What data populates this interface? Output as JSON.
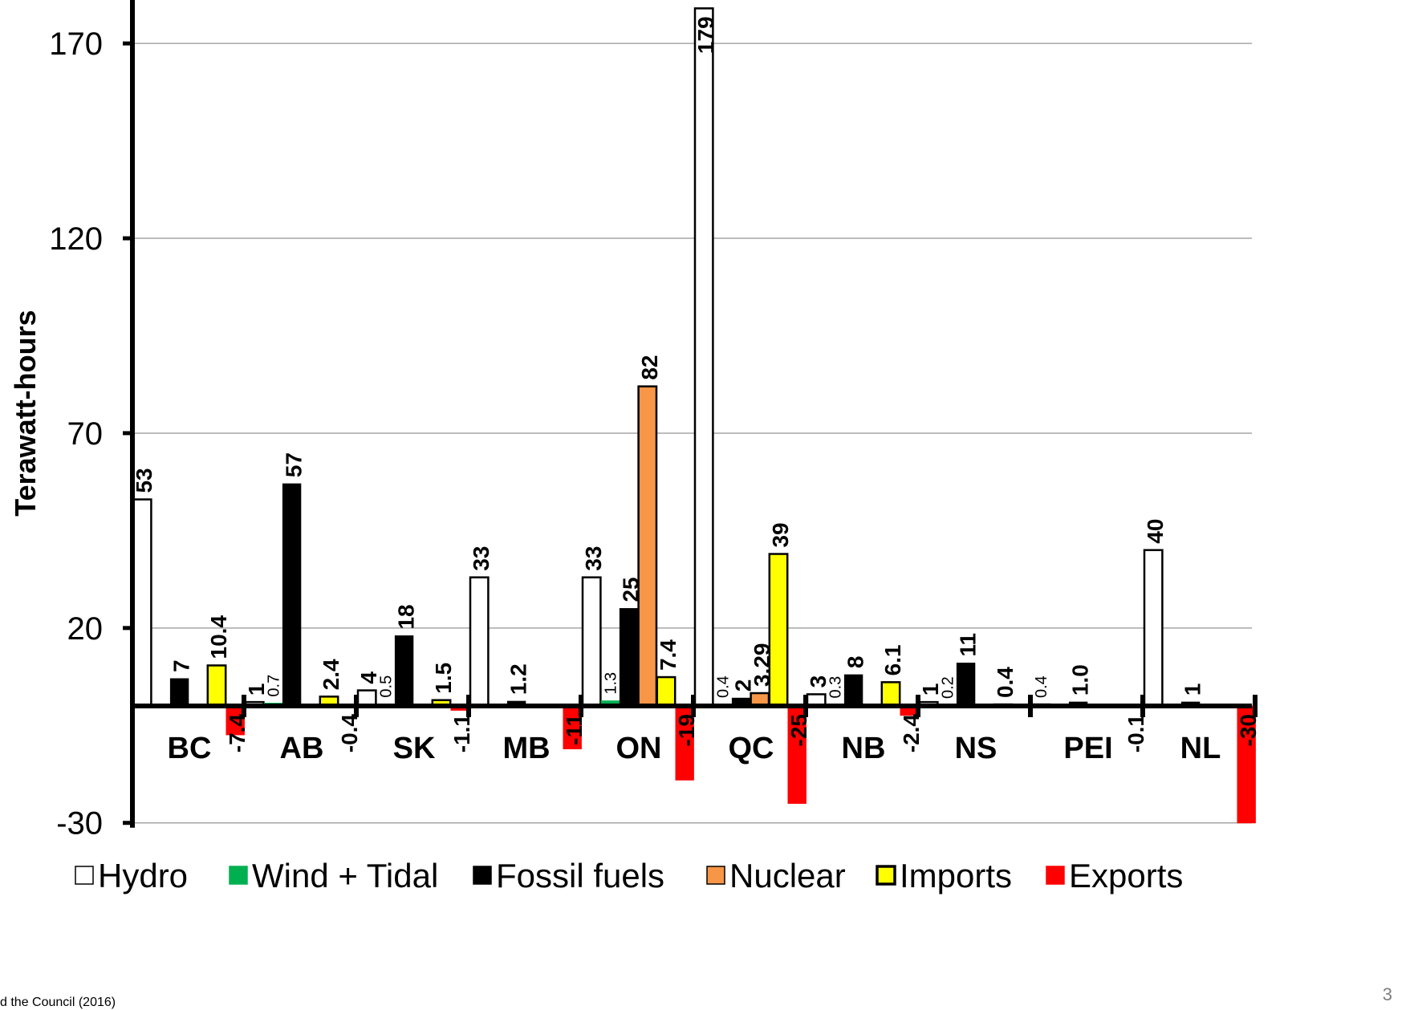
{
  "chart_data": {
    "type": "bar",
    "title": "",
    "xlabel": "",
    "ylabel": "Terawatt-hours",
    "ylim": [
      -30,
      180
    ],
    "yticks": [
      -30,
      20,
      70,
      120,
      170
    ],
    "grid": true,
    "legend_position": "bottom",
    "categories": [
      "BC",
      "AB",
      "SK",
      "MB",
      "ON",
      "QC",
      "NB",
      "NS",
      "PEI",
      "NL"
    ],
    "series": [
      {
        "name": "Hydro",
        "color": "#ffffff",
        "edge": "#000000",
        "values": [
          53,
          1,
          4,
          33,
          33,
          179,
          3,
          1,
          0.4,
          40
        ],
        "labels": [
          "53",
          "1",
          "4",
          "33",
          "33",
          "179",
          "3",
          "1",
          "0.4",
          "40"
        ]
      },
      {
        "name": "Wind + Tidal",
        "color": "#00b050",
        "edge": "#00b050",
        "values": [
          0,
          0.7,
          0.5,
          0,
          1.3,
          0.4,
          0.3,
          0.2,
          0,
          0
        ],
        "labels": [
          "",
          "0.7",
          "0.5",
          "",
          "1.3",
          "0.4",
          "0.3",
          "0.2",
          "",
          ""
        ]
      },
      {
        "name": "Fossil fuels",
        "color": "#000000",
        "edge": "#000000",
        "values": [
          7,
          57,
          18,
          1.2,
          25,
          2,
          8,
          11,
          1.0,
          1
        ],
        "labels": [
          "7",
          "57",
          "18",
          "1.2",
          "25",
          "2",
          "8",
          "11",
          "1.0",
          "1"
        ]
      },
      {
        "name": "Nuclear",
        "color": "#f79646",
        "edge": "#000000",
        "values": [
          0,
          0,
          0,
          0,
          82,
          3.29,
          0,
          0,
          0,
          0
        ],
        "labels": [
          "",
          "",
          "",
          "",
          "82",
          "3.29",
          "",
          "",
          "",
          ""
        ]
      },
      {
        "name": "Imports",
        "color": "#ffff00",
        "edge": "#000000",
        "values": [
          10.4,
          2.4,
          1.5,
          0,
          7.4,
          39,
          6.1,
          0.4,
          0,
          0
        ],
        "labels": [
          "10.4",
          "2.4",
          "1.5",
          "",
          "7.4",
          "39",
          "6.1",
          "0.4",
          "",
          ""
        ]
      },
      {
        "name": "Exports",
        "color": "#ff0000",
        "edge": "#ff0000",
        "values": [
          -7.4,
          -0.4,
          -1.1,
          -11,
          -19,
          -25,
          -2.4,
          0,
          -0.1,
          -30
        ],
        "labels": [
          "-7.4",
          "-0.4",
          "-1.1",
          "-11",
          "-19",
          "-25",
          "-2.4",
          "",
          "-0.1",
          "-30"
        ]
      }
    ]
  },
  "page_number": "3",
  "footer_fragment": "d the Council (2016)"
}
